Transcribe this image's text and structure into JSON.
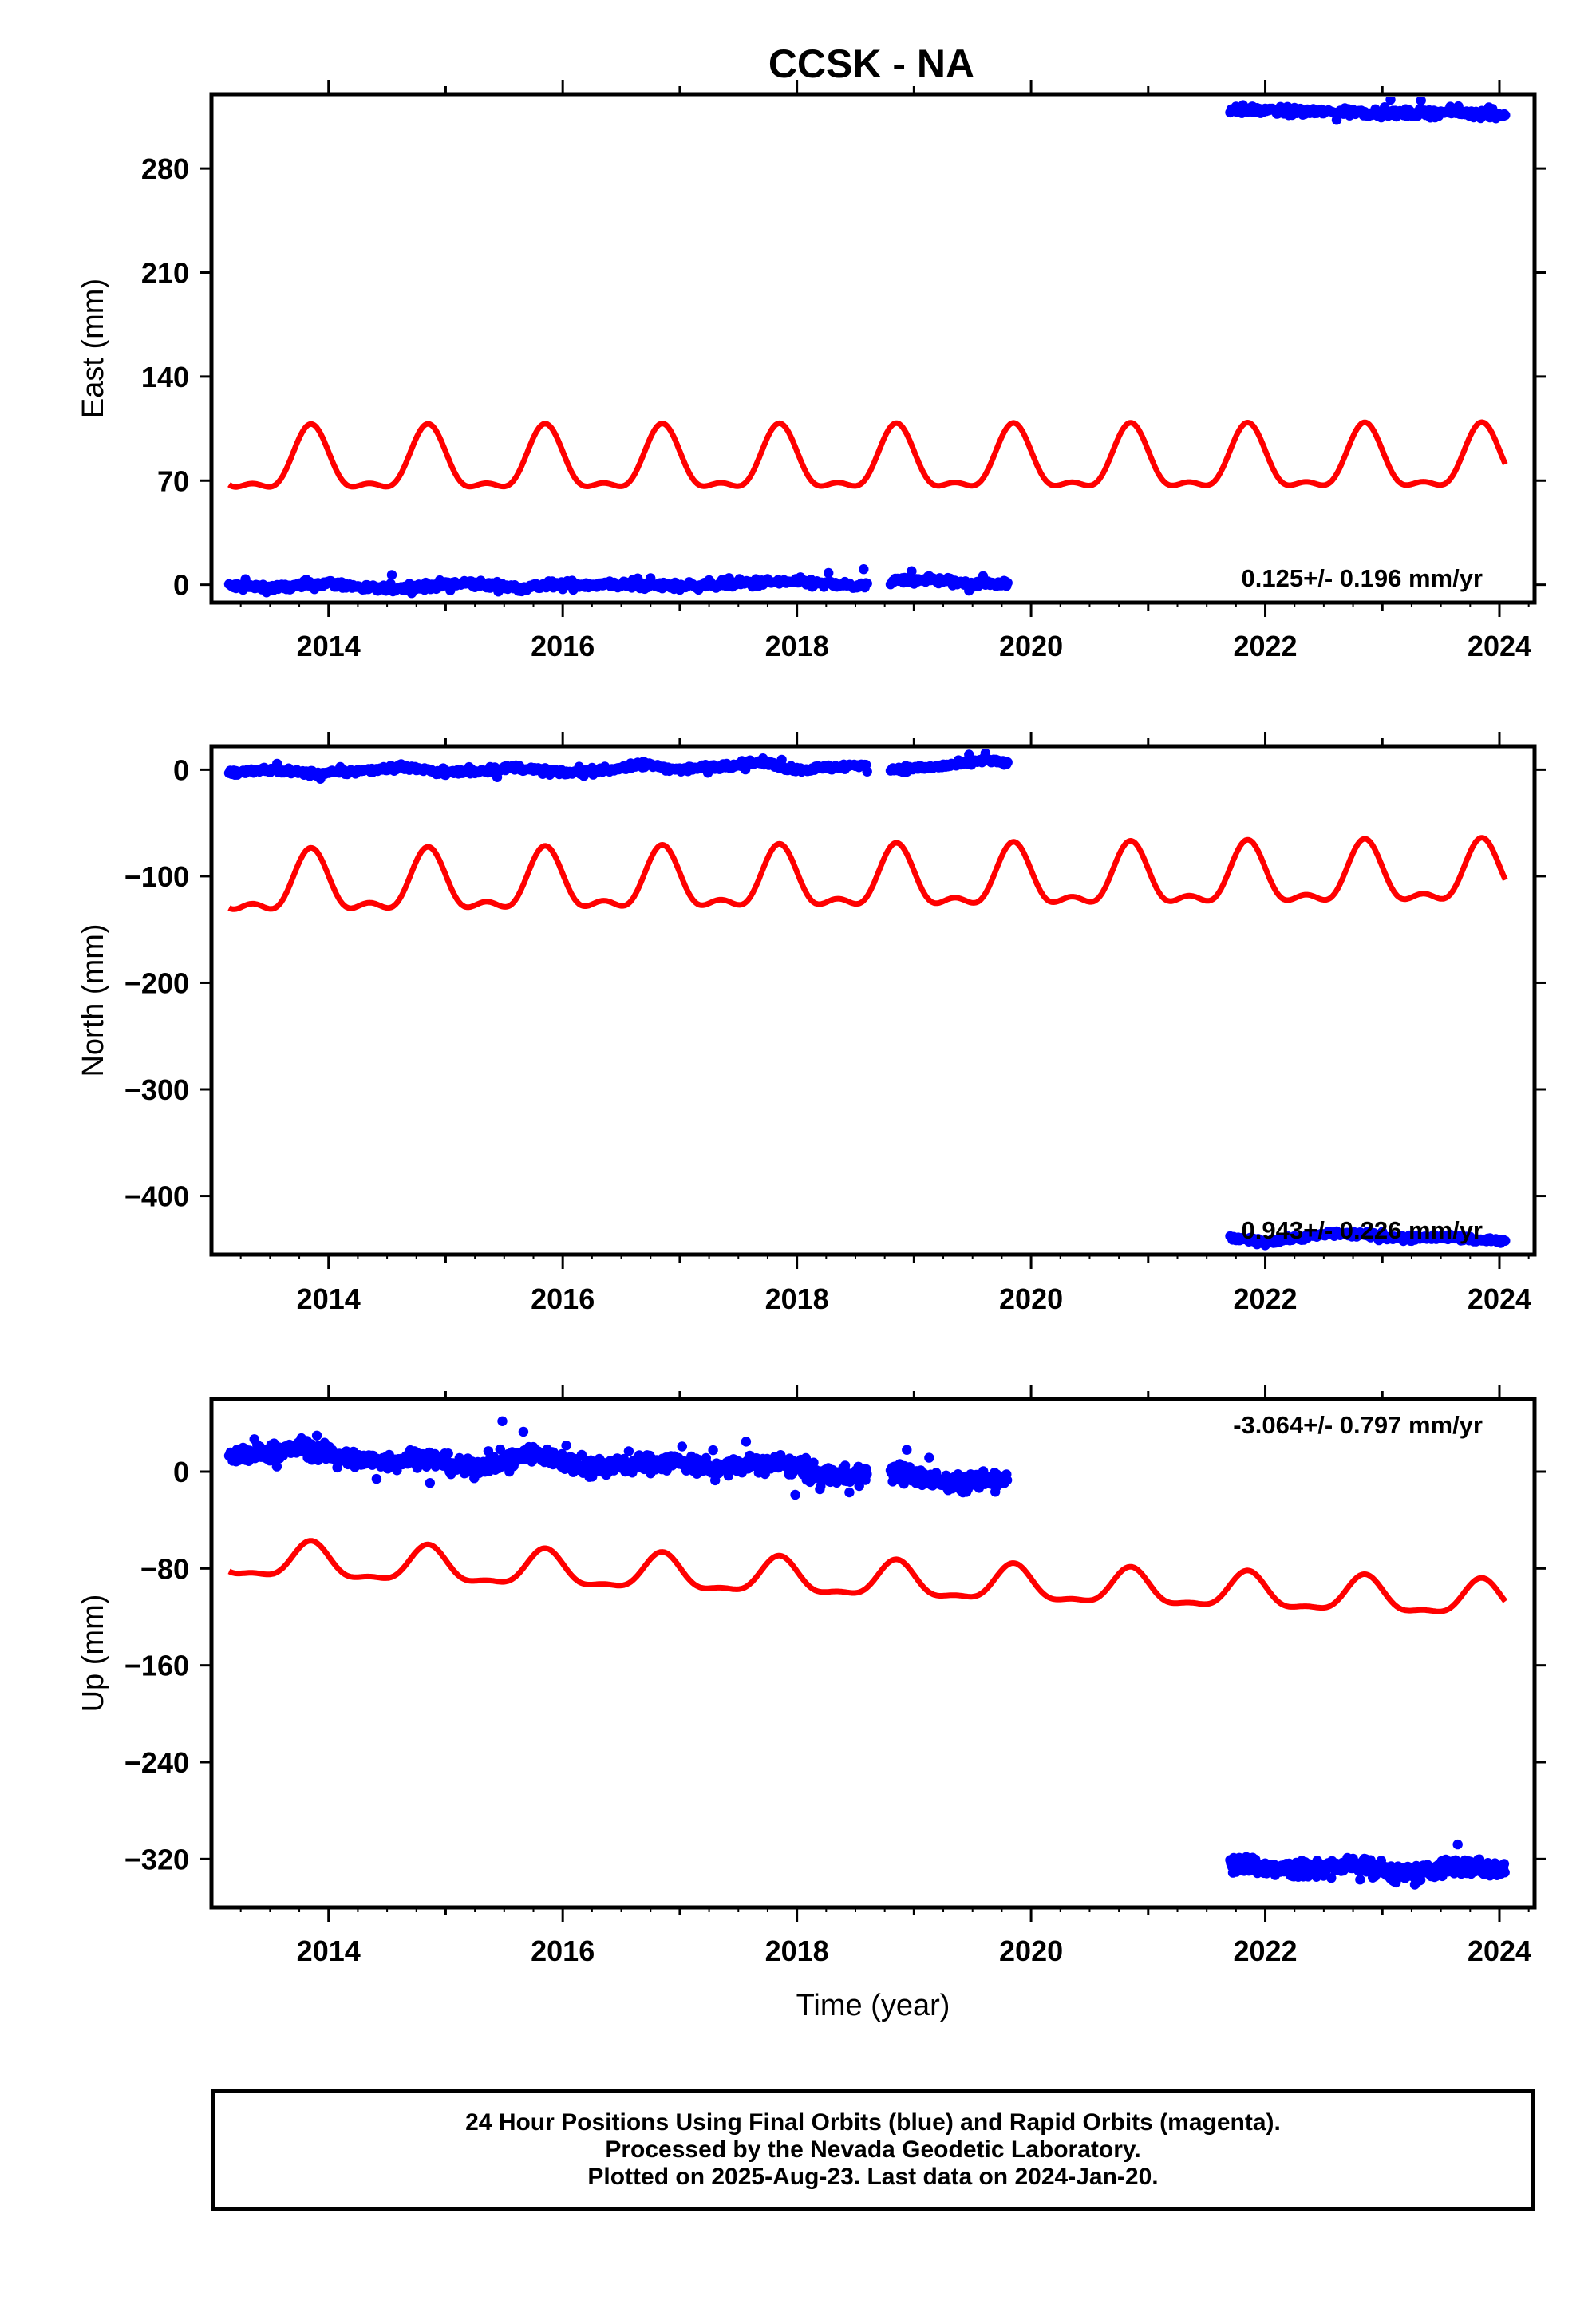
{
  "title": "CCSK - NA",
  "colors": {
    "data": "#0000ff",
    "model": "#ff0000",
    "frame": "#000000"
  },
  "chart_data": [
    {
      "type": "scatter",
      "id": "east",
      "ylabel": "East (mm)",
      "xlabel": "",
      "xlim": [
        2013.0,
        2024.3
      ],
      "ylim": [
        -12,
        330
      ],
      "yticks": [
        0,
        70,
        140,
        210,
        280
      ],
      "xticks": [
        2014,
        2016,
        2018,
        2020,
        2022,
        2024
      ],
      "rate_text": "0.125+/- 0.196 mm/yr",
      "rate_position": "bottom-right",
      "series": [
        {
          "role": "data",
          "segments": [
            {
              "x": [
                2013.15,
                2013.6,
                2014.0,
                2014.4,
                2014.8,
                2015.2,
                2015.6,
                2016.0,
                2016.5,
                2017.0,
                2017.5,
                2018.0,
                2018.3,
                2018.6
              ],
              "y": [
                -1,
                -2,
                1,
                -3,
                -1,
                1,
                -2,
                0,
                0,
                -1,
                1,
                2,
                0,
                -1
              ]
            },
            {
              "x": [
                2018.8,
                2019.1,
                2019.4,
                2019.8
              ],
              "y": [
                2,
                4,
                1,
                1
              ]
            },
            {
              "x": [
                2021.7,
                2022.0,
                2022.4,
                2022.8,
                2023.2,
                2023.6,
                2024.05
              ],
              "y": [
                320,
                319,
                318,
                318,
                317,
                318,
                316
              ]
            }
          ]
        },
        {
          "role": "model",
          "period": 1.0,
          "x_start": 2013.15,
          "x_end": 2024.05,
          "mean": 80,
          "trend": 0.125,
          "amp1": 20,
          "phase1": 0.85,
          "amp2": 8,
          "phase2": 0.85
        }
      ]
    },
    {
      "type": "scatter",
      "id": "north",
      "ylabel": "North (mm)",
      "xlabel": "",
      "xlim": [
        2013.0,
        2024.3
      ],
      "ylim": [
        -455,
        22
      ],
      "yticks": [
        0,
        -100,
        -200,
        -300,
        -400
      ],
      "xticks": [
        2014,
        2016,
        2018,
        2020,
        2022,
        2024
      ],
      "rate_text": "0.943+/- 0.226 mm/yr",
      "rate_position": "bottom-right",
      "series": [
        {
          "role": "data",
          "segments": [
            {
              "x": [
                2013.15,
                2013.5,
                2013.9,
                2014.3,
                2014.6,
                2015.0,
                2015.3,
                2015.6,
                2016.0,
                2016.4,
                2016.7,
                2017.0,
                2017.4,
                2017.7,
                2018.0,
                2018.3,
                2018.6
              ],
              "y": [
                -3,
                0,
                -4,
                -1,
                3,
                -3,
                -1,
                2,
                -3,
                0,
                5,
                0,
                4,
                7,
                0,
                2,
                5
              ]
            },
            {
              "x": [
                2018.8,
                2019.1,
                2019.4,
                2019.6,
                2019.8
              ],
              "y": [
                0,
                2,
                5,
                9,
                6
              ]
            },
            {
              "x": [
                2021.7,
                2022.0,
                2022.3,
                2022.6,
                2022.9,
                2023.2,
                2023.5,
                2023.8,
                2024.05
              ],
              "y": [
                -440,
                -443,
                -439,
                -435,
                -437,
                -440,
                -438,
                -441,
                -442
              ]
            }
          ]
        },
        {
          "role": "model",
          "period": 1.0,
          "x_start": 2013.15,
          "x_end": 2024.05,
          "mean": -112,
          "trend": 0.943,
          "amp1": 26,
          "phase1": 0.85,
          "amp2": 12,
          "phase2": 0.85
        }
      ]
    },
    {
      "type": "scatter",
      "id": "up",
      "ylabel": "Up (mm)",
      "xlabel": "Time (year)",
      "xlim": [
        2013.0,
        2024.3
      ],
      "ylim": [
        -360,
        60
      ],
      "yticks": [
        0,
        -80,
        -160,
        -240,
        -320
      ],
      "xticks": [
        2014,
        2016,
        2018,
        2020,
        2022,
        2024
      ],
      "rate_text": "-3.064+/- 0.797 mm/yr",
      "rate_position": "top-right",
      "series": [
        {
          "role": "data",
          "segments": [
            {
              "x": [
                2013.15,
                2013.5,
                2013.8,
                2014.2,
                2014.5,
                2014.8,
                2015.2,
                2015.5,
                2015.8,
                2016.2,
                2016.6,
                2017.0,
                2017.3,
                2017.6,
                2017.9,
                2018.2,
                2018.6
              ],
              "y": [
                12,
                16,
                20,
                10,
                8,
                12,
                2,
                10,
                14,
                4,
                6,
                8,
                2,
                6,
                6,
                -4,
                -2
              ]
            },
            {
              "x": [
                2018.8,
                2019.1,
                2019.4,
                2019.8
              ],
              "y": [
                0,
                -6,
                -10,
                -4
              ]
            },
            {
              "x": [
                2021.7,
                2022.0,
                2022.4,
                2022.8,
                2023.2,
                2023.6,
                2024.05
              ],
              "y": [
                -322,
                -328,
                -330,
                -324,
                -334,
                -326,
                -328
              ]
            }
          ]
        },
        {
          "role": "model",
          "period": 1.0,
          "x_start": 2013.15,
          "x_end": 2024.05,
          "mean": -74,
          "trend": -3.064,
          "amp1": 14,
          "phase1": 0.85,
          "amp2": 5,
          "phase2": 0.85
        }
      ]
    }
  ],
  "footer": {
    "line1": "24 Hour Positions Using Final Orbits (blue) and Rapid Orbits (magenta).",
    "line2": "Processed by the Nevada Geodetic Laboratory.",
    "line3": "Plotted on 2025-Aug-23. Last data on 2024-Jan-20."
  }
}
